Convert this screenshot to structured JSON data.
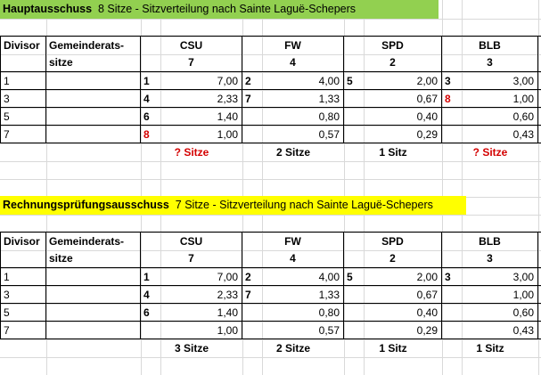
{
  "section1": {
    "title_bold": "Hauptausschuss",
    "title_rest": "8 Sitze - Sitzverteilung nach Sainte Laguë-Schepers",
    "header": {
      "divisor": "Divisor",
      "gemeinderat_line1": "Gemeinderats-",
      "gemeinderat_line2": "sitze",
      "parties": [
        "CSU",
        "FW",
        "SPD",
        "BLB"
      ],
      "party_seats": [
        "7",
        "4",
        "2",
        "3"
      ]
    },
    "rows": [
      {
        "divisor": "1",
        "ranks": [
          "1",
          "2",
          "5",
          "3"
        ],
        "values": [
          "7,00",
          "4,00",
          "2,00",
          "3,00"
        ]
      },
      {
        "divisor": "3",
        "ranks": [
          "4",
          "7",
          "",
          "8"
        ],
        "values": [
          "2,33",
          "1,33",
          "0,67",
          "1,00"
        ]
      },
      {
        "divisor": "5",
        "ranks": [
          "6",
          "",
          "",
          ""
        ],
        "values": [
          "1,40",
          "0,80",
          "0,40",
          "0,60"
        ]
      },
      {
        "divisor": "7",
        "ranks": [
          "8",
          "",
          "",
          ""
        ],
        "values": [
          "1,00",
          "0,57",
          "0,29",
          "0,43"
        ]
      }
    ],
    "totals": [
      "? Sitze",
      "2 Sitze",
      "1 Sitz",
      "? Sitze"
    ]
  },
  "section2": {
    "title_bold": "Rechnungsprüfungsausschuss",
    "title_rest": "7 Sitze - Sitzverteilung nach Sainte Laguë-Schepers",
    "header": {
      "divisor": "Divisor",
      "gemeinderat_line1": "Gemeinderats-",
      "gemeinderat_line2": "sitze",
      "parties": [
        "CSU",
        "FW",
        "SPD",
        "BLB"
      ],
      "party_seats": [
        "7",
        "4",
        "2",
        "3"
      ]
    },
    "rows": [
      {
        "divisor": "1",
        "ranks": [
          "1",
          "2",
          "5",
          "3"
        ],
        "values": [
          "7,00",
          "4,00",
          "2,00",
          "3,00"
        ]
      },
      {
        "divisor": "3",
        "ranks": [
          "4",
          "7",
          "",
          ""
        ],
        "values": [
          "2,33",
          "1,33",
          "0,67",
          "1,00"
        ]
      },
      {
        "divisor": "5",
        "ranks": [
          "6",
          "",
          "",
          ""
        ],
        "values": [
          "1,40",
          "0,80",
          "0,40",
          "0,60"
        ]
      },
      {
        "divisor": "7",
        "ranks": [
          "",
          "",
          "",
          ""
        ],
        "values": [
          "1,00",
          "0,57",
          "0,29",
          "0,43"
        ]
      }
    ],
    "totals": [
      "3 Sitze",
      "2 Sitze",
      "1 Sitz",
      "1 Sitz"
    ]
  },
  "colors": {
    "title1_bg": "#92d050",
    "title2_bg": "#ffff00",
    "highlight_red": "#d40000"
  }
}
